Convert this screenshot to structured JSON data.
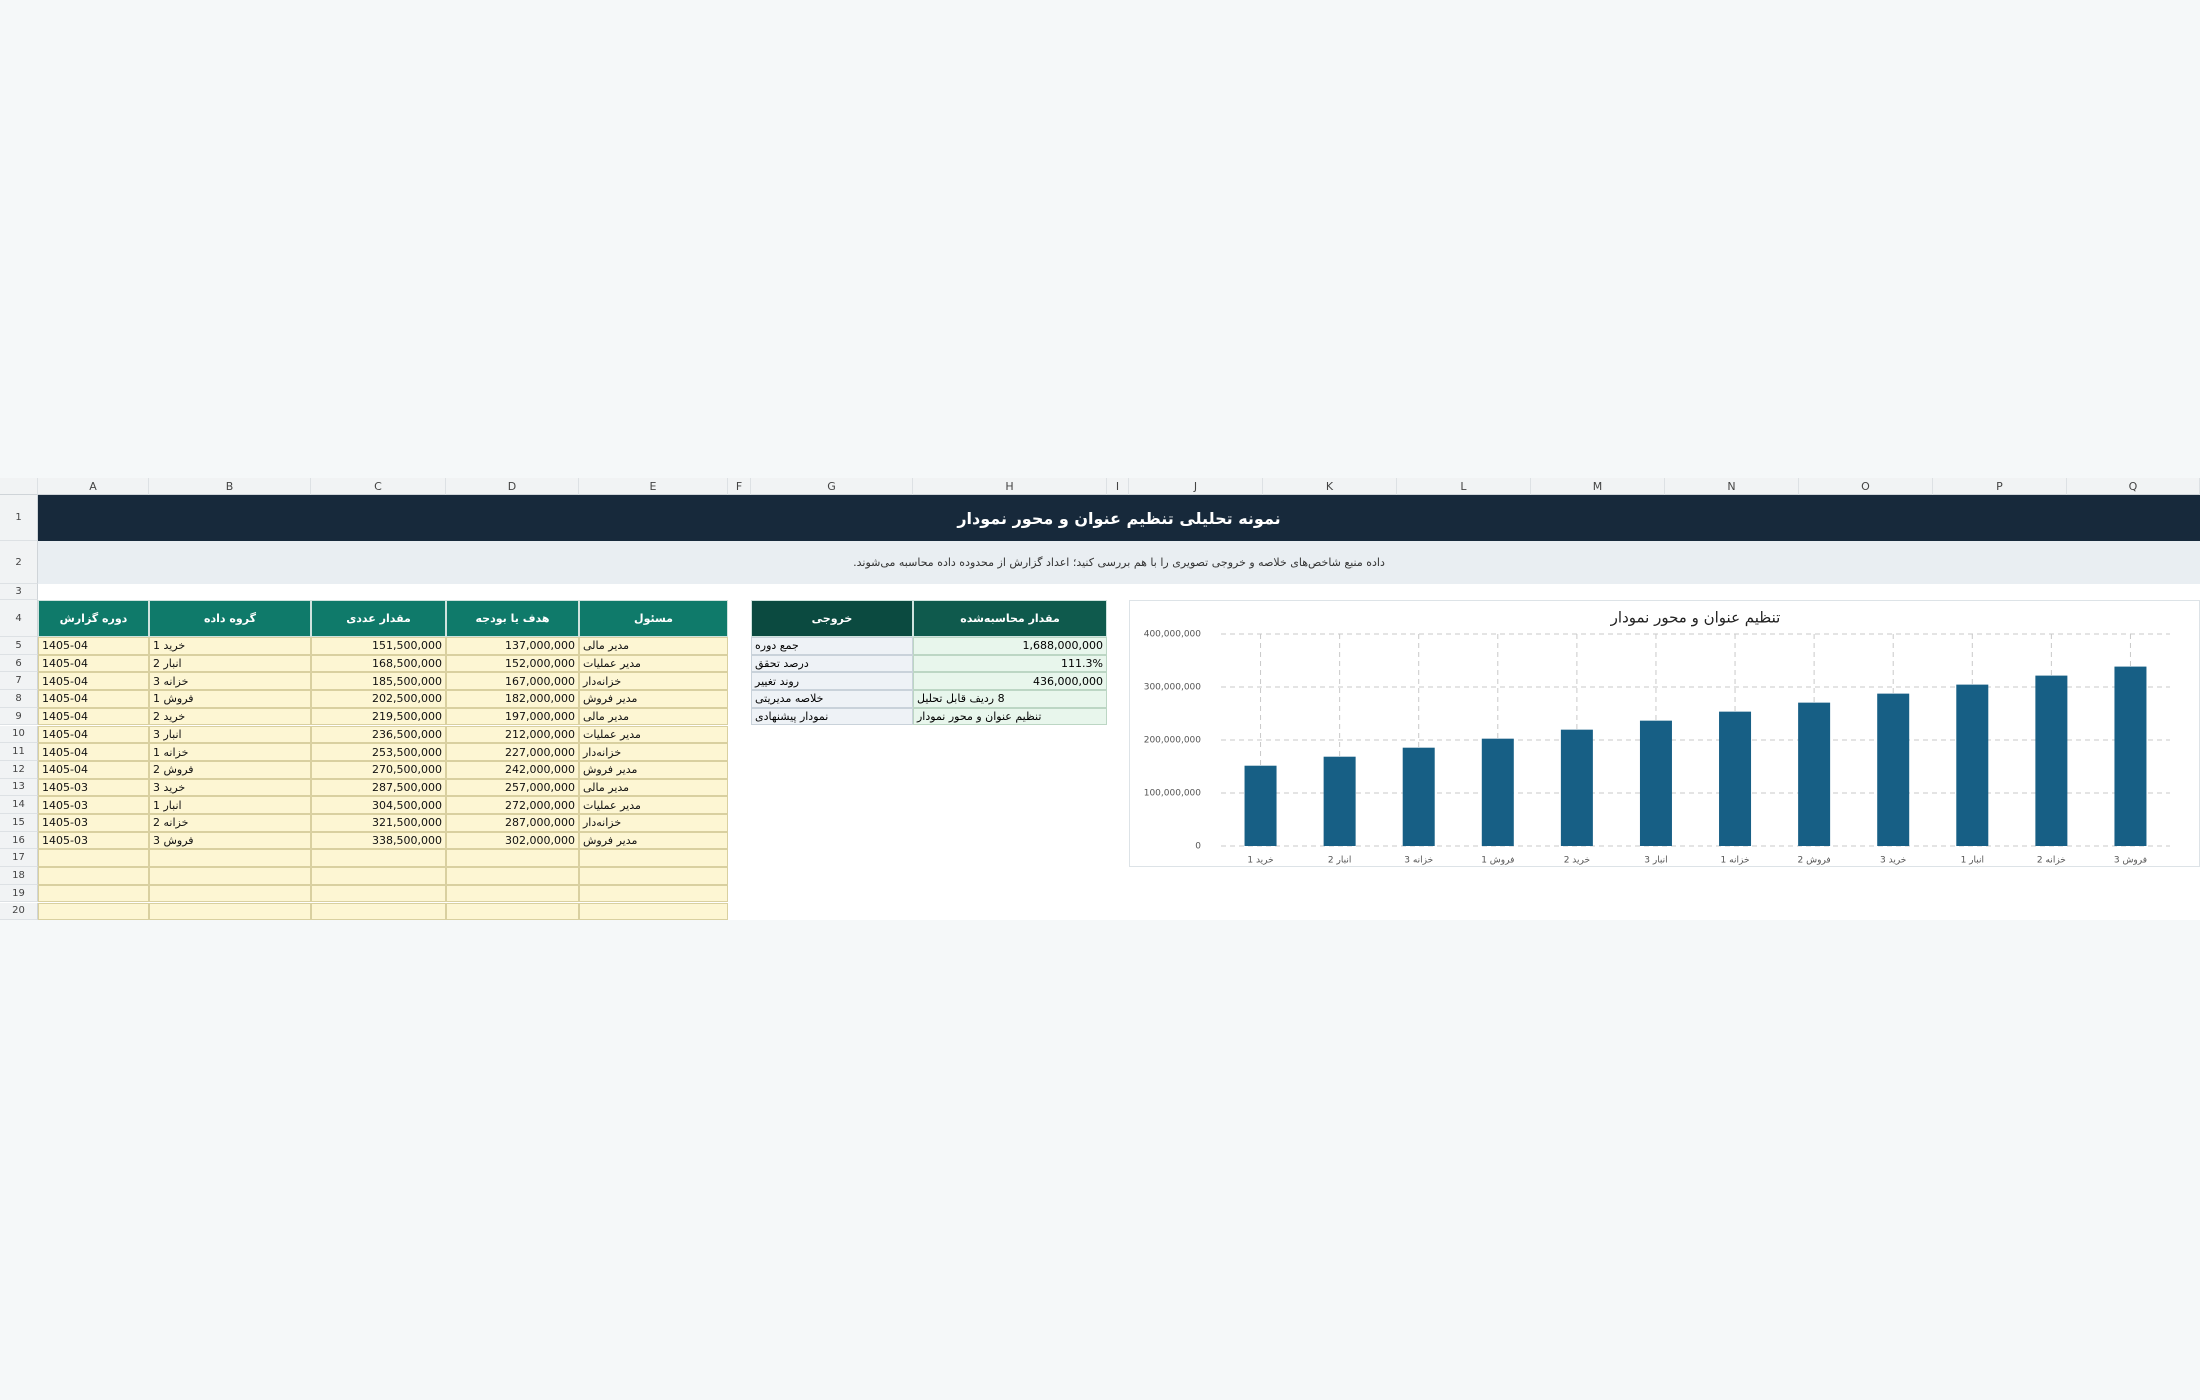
{
  "column_headers": [
    "A",
    "B",
    "C",
    "D",
    "E",
    "F",
    "G",
    "H",
    "I",
    "J",
    "K",
    "L",
    "M",
    "N",
    "O",
    "P",
    "Q"
  ],
  "row_numbers": [
    1,
    2,
    3,
    4,
    5,
    6,
    7,
    8,
    9,
    10,
    11,
    12,
    13,
    14,
    15,
    16,
    17,
    18,
    19,
    20
  ],
  "header": {
    "title": "نمونه تحلیلی تنظیم عنوان و محور نمودار",
    "subtitle": "داده منبع شاخص‌های خلاصه و خروجی تصویری را با هم بررسی کنید؛ اعداد گزارش از محدوده داده محاسبه می‌شوند."
  },
  "table": {
    "columns": [
      "دوره گزارش",
      "گروه داده",
      "مقدار عددی",
      "هدف یا بودجه",
      "مسئول"
    ],
    "rows": [
      [
        "1405-04",
        "خرید 1",
        "151,500,000",
        "137,000,000",
        "مدیر مالی"
      ],
      [
        "1405-04",
        "انبار 2",
        "168,500,000",
        "152,000,000",
        "مدیر عملیات"
      ],
      [
        "1405-04",
        "خزانه 3",
        "185,500,000",
        "167,000,000",
        "خزانه‌دار"
      ],
      [
        "1405-04",
        "فروش 1",
        "202,500,000",
        "182,000,000",
        "مدیر فروش"
      ],
      [
        "1405-04",
        "خرید 2",
        "219,500,000",
        "197,000,000",
        "مدیر مالی"
      ],
      [
        "1405-04",
        "انبار 3",
        "236,500,000",
        "212,000,000",
        "مدیر عملیات"
      ],
      [
        "1405-04",
        "خزانه 1",
        "253,500,000",
        "227,000,000",
        "خزانه‌دار"
      ],
      [
        "1405-04",
        "فروش 2",
        "270,500,000",
        "242,000,000",
        "مدیر فروش"
      ],
      [
        "1405-03",
        "خرید 3",
        "287,500,000",
        "257,000,000",
        "مدیر مالی"
      ],
      [
        "1405-03",
        "انبار 1",
        "304,500,000",
        "272,000,000",
        "مدیر عملیات"
      ],
      [
        "1405-03",
        "خزانه 2",
        "321,500,000",
        "287,000,000",
        "خزانه‌دار"
      ],
      [
        "1405-03",
        "فروش 3",
        "338,500,000",
        "302,000,000",
        "مدیر فروش"
      ]
    ]
  },
  "summary": {
    "columns": [
      "خروجی",
      "مقدار محاسبه‌شده"
    ],
    "rows": [
      [
        "جمع دوره",
        "1,688,000,000"
      ],
      [
        "درصد تحقق",
        "111.3%"
      ],
      [
        "روند تغییر",
        "436,000,000"
      ],
      [
        "خلاصه مدیریتی",
        "8 ردیف قابل تحلیل"
      ],
      [
        "نمودار پیشنهادی",
        "تنظیم عنوان و محور نمودار"
      ]
    ]
  },
  "chart_data": {
    "type": "bar",
    "title": "تنظیم عنوان و محور نمودار",
    "categories": [
      "خرید 1",
      "انبار 2",
      "خزانه 3",
      "فروش 1",
      "خرید 2",
      "انبار 3",
      "خزانه 1",
      "فروش 2",
      "خرید 3",
      "انبار 1",
      "خزانه 2",
      "فروش 3"
    ],
    "values": [
      151500000,
      168500000,
      185500000,
      202500000,
      219500000,
      236500000,
      253500000,
      270500000,
      287500000,
      304500000,
      321500000,
      338500000
    ],
    "color": "#175f85",
    "ylim": [
      0,
      400000000
    ],
    "yticks": [
      0,
      {
        "value": 100000000,
        "label": "100,000,000"
      },
      {
        "value": 200000000,
        "label": "200,000,000"
      },
      {
        "value": 300000000,
        "label": "300,000,000"
      },
      {
        "value": 400000000,
        "label": "400,000,000"
      }
    ],
    "grid": true
  }
}
